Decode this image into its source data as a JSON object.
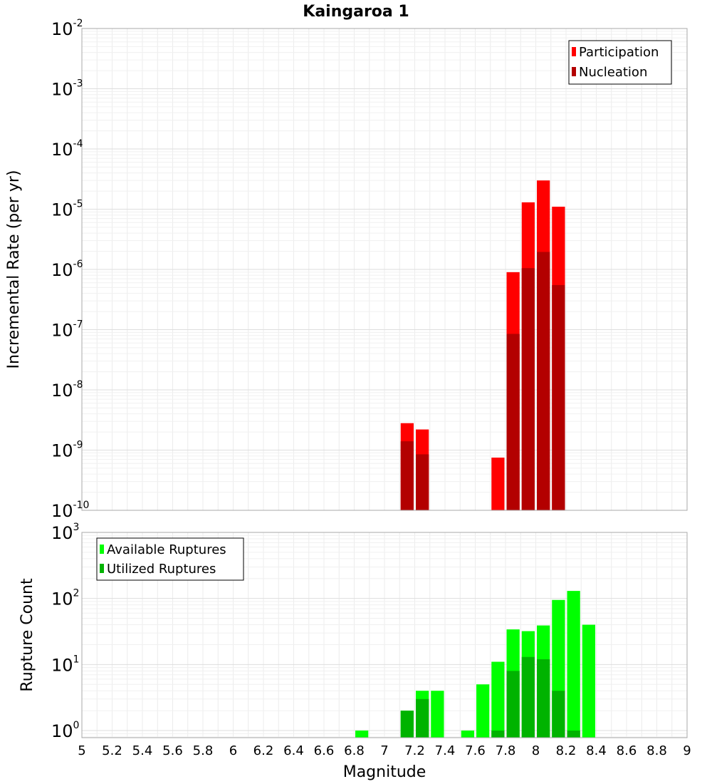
{
  "figure": {
    "title": "Kaingaroa 1",
    "xlabel": "Magnitude",
    "x_ticks": [
      "5",
      "5.2",
      "5.4",
      "5.6",
      "5.8",
      "6",
      "6.2",
      "6.4",
      "6.6",
      "6.8",
      "7",
      "7.2",
      "7.4",
      "7.6",
      "7.8",
      "8",
      "8.2",
      "8.4",
      "8.6",
      "8.8",
      "9"
    ]
  },
  "chart_data": [
    {
      "type": "bar",
      "ylabel": "Incremental Rate (per yr)",
      "xlim": [
        5,
        9
      ],
      "ylim": [
        1e-10,
        0.01
      ],
      "y_scale": "log",
      "grid": true,
      "legend_position": "top-right",
      "bin_width": 0.1,
      "y_ticks": [
        {
          "base": "10",
          "exp": "-10"
        },
        {
          "base": "10",
          "exp": "-9"
        },
        {
          "base": "10",
          "exp": "-8"
        },
        {
          "base": "10",
          "exp": "-7"
        },
        {
          "base": "10",
          "exp": "-6"
        },
        {
          "base": "10",
          "exp": "-5"
        },
        {
          "base": "10",
          "exp": "-4"
        },
        {
          "base": "10",
          "exp": "-3"
        },
        {
          "base": "10",
          "exp": "-2"
        }
      ],
      "series": [
        {
          "name": "Participation",
          "color": "#ff0000",
          "x": [
            7.15,
            7.25,
            7.75,
            7.85,
            7.95,
            8.05,
            8.15
          ],
          "values": [
            2.8e-09,
            2.2e-09,
            7.5e-10,
            9e-07,
            1.3e-05,
            3e-05,
            1.1e-05
          ]
        },
        {
          "name": "Nucleation",
          "color": "#b30000",
          "x": [
            7.15,
            7.25,
            7.85,
            7.95,
            8.05,
            8.15
          ],
          "values": [
            1.4e-09,
            8.5e-10,
            8.5e-08,
            1.05e-06,
            1.95e-06,
            5.5e-07
          ]
        }
      ]
    },
    {
      "type": "bar",
      "ylabel": "Rupture Count",
      "xlim": [
        5,
        9
      ],
      "ylim": [
        0.78,
        1000
      ],
      "y_scale": "log",
      "grid": true,
      "legend_position": "top-left",
      "bin_width": 0.1,
      "y_ticks": [
        {
          "base": "10",
          "exp": "0"
        },
        {
          "base": "10",
          "exp": "1"
        },
        {
          "base": "10",
          "exp": "2"
        },
        {
          "base": "10",
          "exp": "3"
        }
      ],
      "series": [
        {
          "name": "Available Ruptures",
          "color": "#00ff00",
          "x": [
            6.85,
            7.15,
            7.25,
            7.35,
            7.55,
            7.65,
            7.75,
            7.85,
            7.95,
            8.05,
            8.15,
            8.25,
            8.35
          ],
          "values": [
            1,
            2,
            4,
            4,
            1,
            5,
            11,
            34,
            32,
            39,
            95,
            130,
            40
          ]
        },
        {
          "name": "Utilized Ruptures",
          "color": "#00b300",
          "x": [
            7.15,
            7.25,
            7.75,
            7.85,
            7.95,
            8.05,
            8.15,
            8.25
          ],
          "values": [
            2,
            3,
            1,
            8,
            13,
            12,
            4,
            1
          ]
        }
      ]
    }
  ]
}
